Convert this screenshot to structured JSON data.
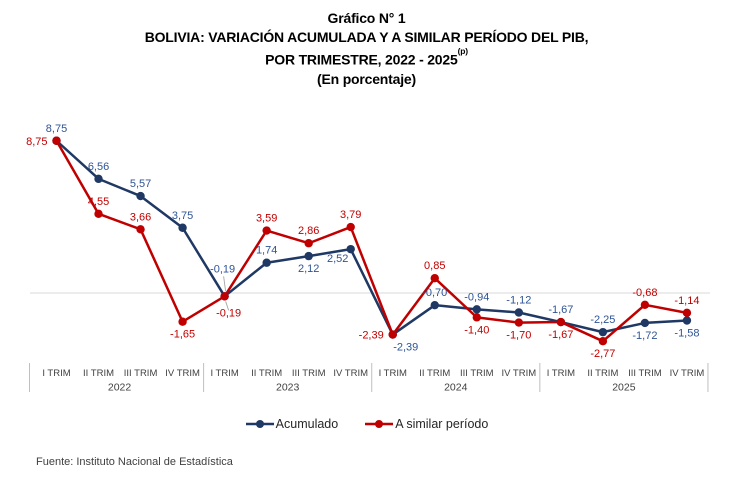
{
  "title": {
    "line1": "Gráfico N° 1",
    "line2": "BOLIVIA: VARIACIÓN ACUMULADA Y A SIMILAR PERÍODO DEL PIB,",
    "line3": "POR TRIMESTRE, 2022 - 2025",
    "line3_superscript": "(p)",
    "line4": "(En porcentaje)"
  },
  "chart_data": {
    "type": "line",
    "title": "BOLIVIA: VARIACIÓN ACUMULADA Y A SIMILAR PERÍODO DEL PIB, POR TRIMESTRE, 2022 - 2025(p)",
    "subtitle": "(En porcentaje)",
    "x_axis": {
      "quarter_labels": [
        "I TRIM",
        "II TRIM",
        "III TRIM",
        "IV TRIM"
      ],
      "years": [
        "2022",
        "2023",
        "2024",
        "2025"
      ]
    },
    "ylim": [
      -4,
      10
    ],
    "zero_line": true,
    "grid": "zero-line-only",
    "legend_position": "bottom",
    "series": [
      {
        "name": "Acumulado",
        "color": "#1f3864",
        "label_color": "#2e5496",
        "values": [
          8.75,
          6.56,
          5.57,
          3.75,
          -0.19,
          1.74,
          2.12,
          2.52,
          -2.39,
          -0.7,
          -0.94,
          -1.12,
          -1.67,
          -2.25,
          -1.72,
          -1.58
        ],
        "labels": [
          "8,75",
          "6,56",
          "5,57",
          "3,75",
          "-0,19",
          "1,74",
          "2,12",
          "2,52",
          "-2,39",
          "-0,70",
          "-0,94",
          "-1,12",
          "-1,67",
          "-2,25",
          "-1,72",
          "-1,58"
        ],
        "label_pos": [
          "a",
          "a",
          "a",
          "a",
          "aa*",
          "a",
          "b",
          "bl",
          "br",
          "a",
          "a",
          "a",
          "a",
          "a",
          "b",
          "b"
        ]
      },
      {
        "name": "A similar período",
        "color": "#c00000",
        "label_color": "#c00000",
        "values": [
          8.75,
          4.55,
          3.66,
          -1.65,
          -0.19,
          3.59,
          2.86,
          3.79,
          -2.39,
          0.85,
          -1.4,
          -1.7,
          -1.67,
          -2.77,
          -0.68,
          -1.14
        ],
        "labels": [
          "8,75",
          "4,55",
          "3,66",
          "-1,65",
          "-0,19",
          "3,59",
          "2,86",
          "3,79",
          "-2,39",
          "0,85",
          "-1,40",
          "-1,70",
          "-1,67",
          "-2,77",
          "-0,68",
          "-1,14"
        ],
        "label_pos": [
          "l",
          "a",
          "a",
          "b",
          "b*",
          "a",
          "a",
          "a",
          "l",
          "a",
          "b",
          "b",
          "b",
          "b",
          "a",
          "a"
        ]
      }
    ]
  },
  "legend": {
    "items": [
      {
        "label": "Acumulado"
      },
      {
        "label": "A similar período"
      }
    ]
  },
  "footer": {
    "source": "Fuente: Instituto Nacional de Estadística"
  },
  "colors": {
    "zero_gridline": "#d9d9d9",
    "year_separator": "#bfbfbf",
    "axis_text": "#404040",
    "leader_line": "#a6a6a6"
  }
}
